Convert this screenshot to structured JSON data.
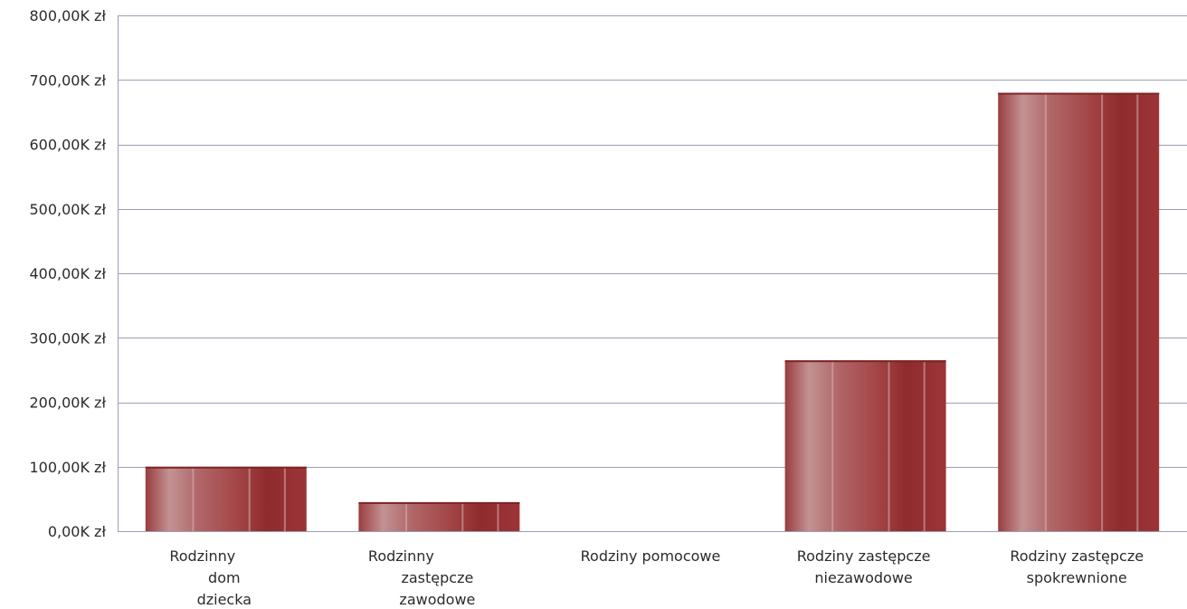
{
  "chart_data": {
    "type": "bar",
    "title": "",
    "xlabel": "",
    "ylabel": "",
    "categories": [
      [
        "Rodzinny",
        "dom",
        "dziecka"
      ],
      [
        "Rodzinny",
        "zastępcze",
        "zawodowe"
      ],
      [
        "Rodziny pomocowe"
      ],
      [
        "Rodziny zastępcze",
        "niezawodowe"
      ],
      [
        "Rodziny zastępcze",
        "spokrewnione"
      ]
    ],
    "values": [
      100,
      45,
      0,
      265,
      680
    ],
    "value_unit": "K zł",
    "ylim": [
      0,
      800
    ],
    "yticks": [
      0,
      100,
      200,
      300,
      400,
      500,
      600,
      700,
      800
    ],
    "ytick_labels": [
      "0,00K zł",
      "100,00K zł",
      "200,00K zł",
      "300,00K zł",
      "400,00K zł",
      "500,00K zł",
      "600,00K zł",
      "700,00K zł",
      "800,00K zł"
    ],
    "grid": true,
    "legend": "none",
    "colors": {
      "bar_dark": "#8e2a2c",
      "bar_light": "#c28a8b",
      "grid": "#9aa0b4"
    }
  }
}
